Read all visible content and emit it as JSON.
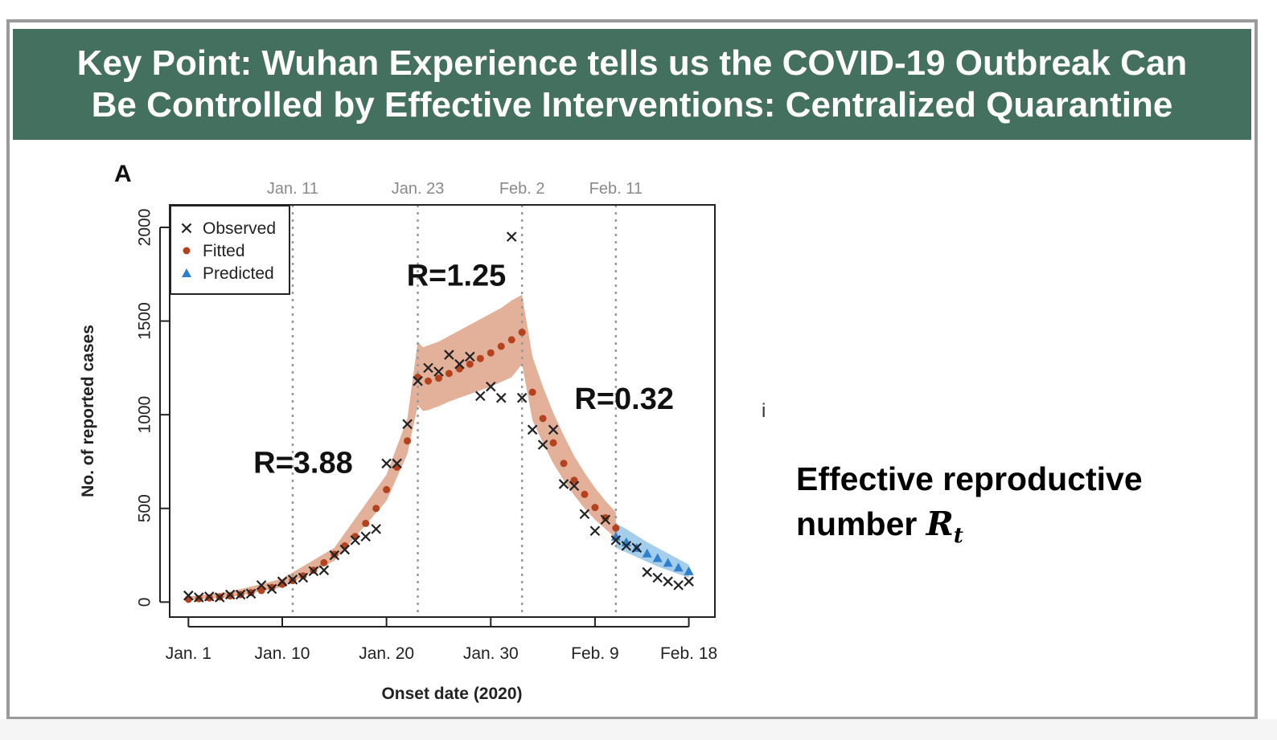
{
  "slide": {
    "title_line1": "Key Point: Wuhan Experience tells us the COVID-19 Outbreak Can",
    "title_line2": "Be Controlled by Effective Interventions: Centralized Quarantine",
    "header_color": "#44705f",
    "annotation_text": "Effective reproductive",
    "annotation_text2": "number ",
    "annotation_symbol": "R",
    "annotation_subscript": "t",
    "stray_mark": "i"
  },
  "chart_data": {
    "type": "scatter",
    "panel_label": "A",
    "xlabel": "Onset date (2020)",
    "ylabel": "No. of reported cases",
    "x_unit": "day of 2020 (1 = Jan. 1)",
    "xlim": [
      -0.8,
      51.5
    ],
    "ylim": [
      -80,
      2120
    ],
    "x_ticks": [
      {
        "x": 1,
        "label": "Jan. 1"
      },
      {
        "x": 10,
        "label": "Jan. 10"
      },
      {
        "x": 20,
        "label": "Jan. 20"
      },
      {
        "x": 30,
        "label": "Jan. 30"
      },
      {
        "x": 40,
        "label": "Feb. 9"
      },
      {
        "x": 49,
        "label": "Feb. 18"
      }
    ],
    "y_ticks": [
      0,
      500,
      1000,
      1500,
      2000
    ],
    "intervention_lines": [
      {
        "x": 11,
        "label": "Jan. 11"
      },
      {
        "x": 23,
        "label": "Jan. 23"
      },
      {
        "x": 33,
        "label": "Feb. 2"
      },
      {
        "x": 42,
        "label": "Feb. 11"
      }
    ],
    "phase_labels": [
      {
        "x": 12,
        "y": 690,
        "text": "R=3.88"
      },
      {
        "x": 26.7,
        "y": 1690,
        "text": "R=1.25"
      },
      {
        "x": 42.8,
        "y": 1030,
        "text": "R=0.32"
      }
    ],
    "legend": {
      "position": "top-left",
      "entries": [
        {
          "label": "Observed",
          "marker": "x",
          "color": "#222222"
        },
        {
          "label": "Fitted",
          "marker": "dot",
          "color": "#b5421f"
        },
        {
          "label": "Predicted",
          "marker": "triangle",
          "color": "#2f7fd1"
        }
      ]
    },
    "colors": {
      "observed": "#222222",
      "fitted": "#b5421f",
      "predicted": "#2f7fd1",
      "fitted_band": "#e0a78e",
      "predicted_band": "#9fcbe8"
    },
    "series": [
      {
        "name": "Observed",
        "marker": "x",
        "x": [
          1,
          2,
          3,
          4,
          5,
          6,
          7,
          8,
          9,
          10,
          11,
          12,
          13,
          14,
          15,
          16,
          17,
          18,
          19,
          20,
          21,
          22,
          23,
          24,
          25,
          26,
          27,
          28,
          29,
          30,
          31,
          32,
          33,
          34,
          35,
          36,
          37,
          38,
          39,
          40,
          41,
          42,
          43,
          44,
          45,
          46,
          47,
          48,
          49
        ],
        "y": [
          35,
          25,
          30,
          25,
          40,
          40,
          45,
          90,
          70,
          110,
          120,
          130,
          165,
          170,
          250,
          280,
          330,
          350,
          390,
          740,
          740,
          950,
          1180,
          1250,
          1230,
          1320,
          1270,
          1310,
          1100,
          1150,
          1090,
          1950,
          1090,
          920,
          840,
          920,
          630,
          620,
          470,
          380,
          440,
          330,
          300,
          290,
          160,
          130,
          110,
          90,
          110
        ]
      },
      {
        "name": "Fitted",
        "marker": "dot",
        "x": [
          1,
          2,
          3,
          4,
          5,
          6,
          7,
          8,
          9,
          10,
          11,
          12,
          13,
          14,
          15,
          16,
          17,
          18,
          19,
          20,
          21,
          22,
          23,
          24,
          25,
          26,
          27,
          28,
          29,
          30,
          31,
          32,
          33,
          34,
          35,
          36,
          37,
          38,
          39,
          40,
          41,
          42
        ],
        "y": [
          15,
          18,
          22,
          27,
          33,
          40,
          50,
          62,
          78,
          95,
          115,
          140,
          170,
          210,
          255,
          300,
          350,
          420,
          500,
          600,
          720,
          860,
          1200,
          1180,
          1195,
          1220,
          1245,
          1270,
          1300,
          1330,
          1365,
          1400,
          1440,
          1120,
          980,
          850,
          740,
          650,
          575,
          505,
          450,
          395
        ]
      },
      {
        "name": "Predicted",
        "marker": "triangle",
        "x": [
          42,
          43,
          44,
          45,
          46,
          47,
          48,
          49
        ],
        "y": [
          350,
          320,
          290,
          260,
          235,
          210,
          185,
          165
        ]
      }
    ],
    "bands": [
      {
        "name": "Fitted interval",
        "x": [
          1,
          5,
          10,
          15,
          20,
          22,
          23,
          23.5,
          24,
          25,
          26,
          27,
          28,
          29,
          30,
          31,
          32,
          33,
          34,
          35,
          36,
          37,
          38,
          39,
          40,
          41,
          42
        ],
        "lower": [
          10,
          25,
          80,
          220,
          540,
          790,
          1050,
          1020,
          1025,
          1045,
          1070,
          1090,
          1110,
          1130,
          1150,
          1175,
          1200,
          1270,
          970,
          850,
          740,
          650,
          570,
          500,
          440,
          390,
          340
        ],
        "upper": [
          30,
          55,
          125,
          290,
          680,
          980,
          1390,
          1360,
          1370,
          1390,
          1420,
          1450,
          1480,
          1510,
          1540,
          1570,
          1610,
          1640,
          1310,
          1150,
          1010,
          890,
          780,
          690,
          610,
          540,
          480
        ]
      },
      {
        "name": "Predicted interval",
        "x": [
          42,
          43,
          44,
          45,
          46,
          47,
          48,
          49
        ],
        "lower": [
          290,
          265,
          240,
          215,
          190,
          170,
          150,
          130
        ],
        "upper": [
          420,
          390,
          355,
          320,
          290,
          260,
          230,
          200
        ]
      }
    ]
  }
}
